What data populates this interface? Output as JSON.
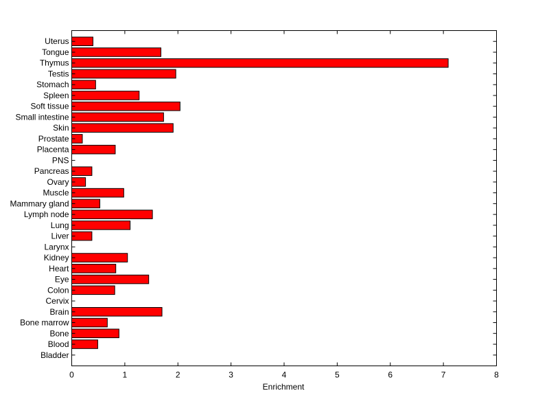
{
  "chart_data": {
    "type": "bar",
    "orientation": "horizontal",
    "categories": [
      "Bladder",
      "Blood",
      "Bone",
      "Bone marrow",
      "Brain",
      "Cervix",
      "Colon",
      "Eye",
      "Heart",
      "Kidney",
      "Larynx",
      "Liver",
      "Lung",
      "Lymph node",
      "Mammary gland",
      "Muscle",
      "Ovary",
      "Pancreas",
      "PNS",
      "Placenta",
      "Prostate",
      "Skin",
      "Small intestine",
      "Soft tissue",
      "Spleen",
      "Stomach",
      "Testis",
      "Thymus",
      "Tongue",
      "Uterus"
    ],
    "values": [
      0,
      0.49,
      0.89,
      0.67,
      1.7,
      0,
      0.81,
      1.45,
      0.83,
      1.05,
      0,
      0.38,
      1.1,
      1.52,
      0.53,
      0.98,
      0.26,
      0.38,
      0,
      0.82,
      0.2,
      1.91,
      1.73,
      2.04,
      1.27,
      0.45,
      1.96,
      7.09,
      1.68,
      0.4
    ],
    "title": "",
    "xlabel": "Enrichment",
    "ylabel": "",
    "xlim": [
      0,
      8
    ],
    "xticks": [
      "0",
      "1",
      "2",
      "3",
      "4",
      "5",
      "6",
      "7",
      "8"
    ],
    "bar_color": "#ff0000",
    "edge_color": "#000000",
    "grid": false,
    "legend": "none"
  }
}
